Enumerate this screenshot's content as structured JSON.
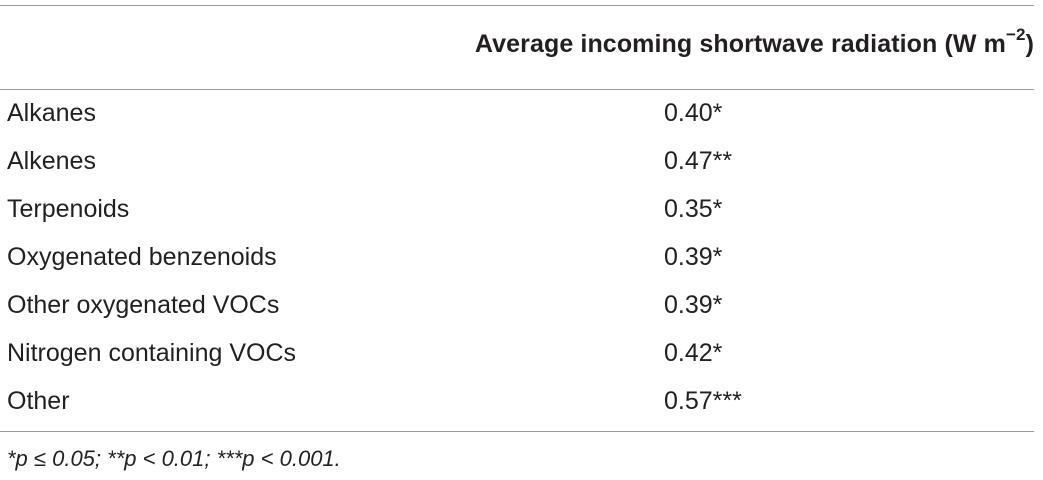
{
  "table": {
    "header": {
      "col1": "",
      "col2_text": "Average incoming shortwave radiation (W m",
      "col2_superscript": "−2",
      "col2_close": ")"
    },
    "rows": [
      {
        "label": "Alkanes",
        "value": "0.40*"
      },
      {
        "label": "Alkenes",
        "value": "0.47**"
      },
      {
        "label": "Terpenoids",
        "value": "0.35*"
      },
      {
        "label": "Oxygenated benzenoids",
        "value": "0.39*"
      },
      {
        "label": "Other oxygenated VOCs",
        "value": "0.39*"
      },
      {
        "label": "Nitrogen containing VOCs",
        "value": "0.42*"
      },
      {
        "label": "Other",
        "value": "0.57***"
      }
    ],
    "footnote": "*p ≤ 0.05; **p < 0.01; ***p < 0.001."
  }
}
